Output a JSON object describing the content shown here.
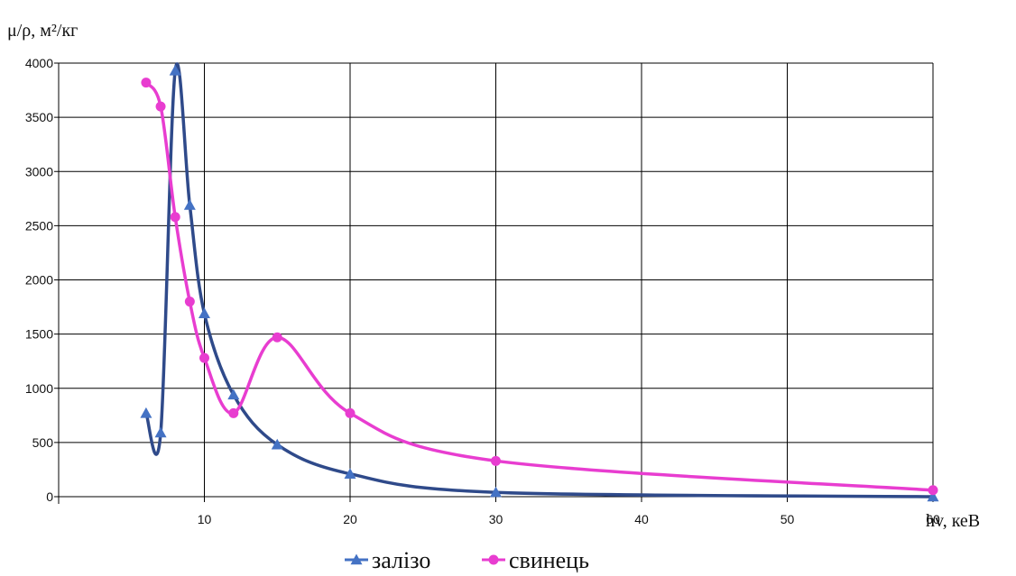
{
  "chart_data": {
    "type": "line",
    "ylabel": "μ/ρ, м²/кг",
    "xlabel": "hv, кеВ",
    "xlim": [
      0,
      60
    ],
    "ylim": [
      0,
      4000
    ],
    "x_ticks": [
      10,
      20,
      30,
      40,
      50,
      60
    ],
    "y_ticks": [
      0,
      500,
      1000,
      1500,
      2000,
      2500,
      3000,
      3500,
      4000
    ],
    "grid": true,
    "legend_position": "bottom",
    "series": [
      {
        "name": "залізо",
        "color": "#4472C4",
        "curve_color": "#2F4A8A",
        "marker": "triangle",
        "x": [
          6,
          7,
          8,
          9,
          10,
          12,
          15,
          20,
          30,
          60
        ],
        "y": [
          770,
          590,
          3930,
          2690,
          1690,
          940,
          480,
          210,
          40,
          0
        ]
      },
      {
        "name": "свинець",
        "color": "#E83DD0",
        "curve_color": "#E83DD0",
        "marker": "circle",
        "x": [
          6,
          7,
          8,
          9,
          10,
          12,
          15,
          20,
          30,
          60
        ],
        "y": [
          3820,
          3600,
          2580,
          1800,
          1280,
          770,
          1470,
          770,
          330,
          60
        ]
      }
    ]
  }
}
